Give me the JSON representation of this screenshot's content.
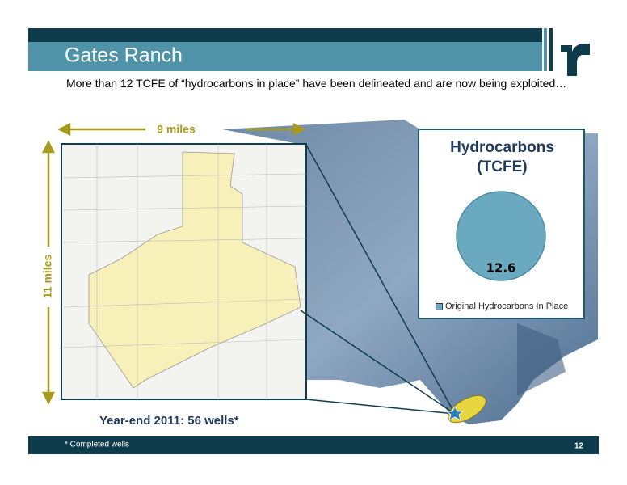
{
  "header": {
    "title": "Gates Ranch"
  },
  "subtitle": "More than 12 TCFE of “hydrocarbons in place” have been delineated and are now being exploited…",
  "scale": {
    "width_label": "9 miles",
    "height_label": "11 miles"
  },
  "caption": "Year-end 2011: 56 wells*",
  "footer": {
    "note": "* Completed wells",
    "page_number": "12"
  },
  "chart_data": {
    "type": "pie",
    "title": "Hydrocarbons (TCFE)",
    "categories": [
      "Original Hydrocarbons In Place"
    ],
    "values": [
      12.6
    ],
    "colors": [
      "#6aa9c0"
    ]
  }
}
